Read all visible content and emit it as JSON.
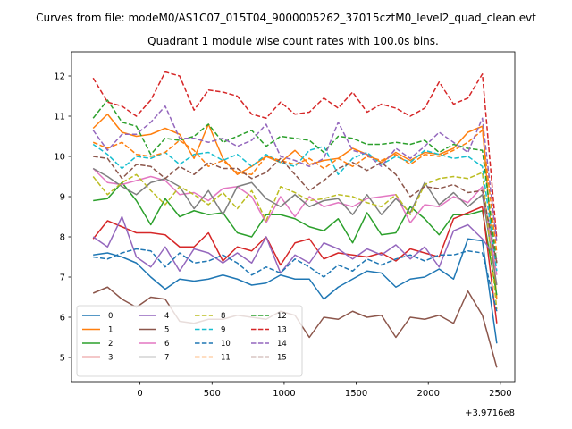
{
  "suptitle": "Curves from file: modeM0/AS1C07_015T04_9000005262_37015cztM0_level2_quad_clean.evt",
  "chart_data": {
    "type": "line",
    "title": "Quadrant 1 module wise count rates with 100.0s bins.",
    "xlabel": "",
    "ylabel": "",
    "x_offset_label": "+3.9716e8",
    "xlim": [
      -475,
      2600
    ],
    "ylim": [
      4.4,
      12.6
    ],
    "xticks": [
      0,
      500,
      1000,
      1500,
      2000,
      2500
    ],
    "yticks": [
      5,
      6,
      7,
      8,
      9,
      10,
      11,
      12
    ],
    "grid": false,
    "legend_position": "lower-left",
    "x": [
      -325,
      -225,
      -125,
      -25,
      75,
      175,
      275,
      375,
      475,
      575,
      675,
      775,
      875,
      975,
      1075,
      1175,
      1275,
      1375,
      1475,
      1575,
      1675,
      1775,
      1875,
      1975,
      2075,
      2175,
      2275,
      2375,
      2475
    ],
    "series": [
      {
        "name": "0",
        "color": "#1f77b4",
        "dash": "solid",
        "values": [
          7.55,
          7.6,
          7.5,
          7.35,
          7.0,
          6.7,
          6.95,
          6.9,
          6.95,
          7.05,
          6.95,
          6.8,
          6.85,
          7.05,
          6.95,
          6.95,
          6.45,
          6.75,
          6.95,
          7.15,
          7.1,
          6.75,
          6.95,
          7.0,
          7.2,
          6.95,
          7.95,
          7.9,
          5.35
        ]
      },
      {
        "name": "1",
        "color": "#ff7f0e",
        "dash": "solid",
        "values": [
          10.7,
          11.05,
          10.6,
          10.5,
          10.55,
          10.7,
          10.55,
          9.95,
          10.8,
          9.95,
          9.55,
          9.75,
          10.0,
          9.85,
          10.15,
          9.8,
          9.9,
          9.95,
          10.2,
          10.05,
          9.85,
          10.1,
          9.9,
          10.1,
          10.05,
          10.2,
          10.6,
          10.75,
          6.45
        ]
      },
      {
        "name": "2",
        "color": "#2ca02c",
        "dash": "solid",
        "values": [
          8.9,
          8.95,
          9.35,
          8.9,
          8.3,
          8.95,
          8.5,
          8.65,
          8.55,
          8.6,
          8.1,
          8.0,
          8.55,
          8.55,
          8.45,
          8.25,
          8.15,
          8.45,
          7.85,
          8.6,
          8.05,
          8.1,
          8.75,
          8.45,
          8.05,
          8.55,
          8.55,
          8.65,
          6.55
        ]
      },
      {
        "name": "3",
        "color": "#d62728",
        "dash": "solid",
        "values": [
          7.95,
          8.4,
          8.25,
          8.1,
          8.1,
          8.05,
          7.75,
          7.75,
          8.1,
          7.4,
          7.75,
          7.65,
          8.0,
          7.3,
          7.85,
          7.95,
          7.45,
          7.6,
          7.55,
          7.5,
          7.6,
          7.4,
          7.7,
          7.6,
          7.5,
          8.45,
          8.6,
          8.75,
          5.85
        ]
      },
      {
        "name": "4",
        "color": "#9467bd",
        "dash": "solid",
        "values": [
          8.0,
          7.75,
          8.5,
          7.5,
          7.25,
          7.75,
          7.15,
          7.7,
          7.6,
          7.35,
          7.6,
          7.35,
          8.0,
          7.1,
          7.55,
          7.35,
          7.85,
          7.7,
          7.45,
          7.7,
          7.55,
          7.8,
          7.45,
          7.75,
          7.25,
          8.15,
          8.3,
          7.95,
          7.45
        ]
      },
      {
        "name": "5",
        "color": "#8c564b",
        "dash": "solid",
        "values": [
          6.6,
          6.75,
          6.45,
          6.25,
          6.5,
          6.45,
          5.9,
          5.85,
          5.95,
          5.95,
          6.05,
          6.0,
          5.95,
          6.15,
          6.05,
          5.5,
          6.0,
          5.95,
          6.15,
          6.0,
          6.05,
          5.5,
          6.0,
          5.95,
          6.05,
          5.85,
          6.65,
          6.05,
          4.75
        ]
      },
      {
        "name": "6",
        "color": "#e377c2",
        "dash": "solid",
        "values": [
          9.7,
          9.35,
          9.3,
          9.4,
          9.5,
          9.4,
          9.05,
          9.1,
          8.9,
          9.2,
          9.25,
          9.0,
          8.35,
          9.0,
          8.5,
          9.0,
          8.75,
          8.85,
          8.75,
          8.95,
          9.0,
          9.05,
          8.35,
          8.8,
          8.75,
          9.0,
          8.85,
          9.25,
          7.05
        ]
      },
      {
        "name": "7",
        "color": "#7f7f7f",
        "dash": "solid",
        "values": [
          9.7,
          9.5,
          9.25,
          9.05,
          9.35,
          9.45,
          9.25,
          8.7,
          9.15,
          8.55,
          9.25,
          9.35,
          8.95,
          8.75,
          9.05,
          8.75,
          8.9,
          8.95,
          8.55,
          9.05,
          8.55,
          8.95,
          8.6,
          9.35,
          8.8,
          9.1,
          8.75,
          9.05,
          6.8
        ]
      },
      {
        "name": "8",
        "color": "#bcbd22",
        "dash": "dashed",
        "values": [
          9.5,
          9.05,
          9.35,
          9.55,
          9.15,
          8.8,
          9.25,
          9.05,
          8.8,
          9.1,
          8.7,
          9.15,
          8.4,
          9.25,
          9.1,
          8.9,
          8.95,
          9.05,
          9.0,
          8.85,
          8.75,
          9.05,
          8.55,
          9.3,
          9.45,
          9.5,
          9.45,
          9.6,
          6.2
        ]
      },
      {
        "name": "9",
        "color": "#17becf",
        "dash": "dashed",
        "values": [
          10.3,
          10.05,
          9.7,
          10.0,
          9.95,
          10.1,
          9.8,
          10.05,
          10.1,
          9.9,
          10.05,
          9.75,
          10.05,
          9.85,
          9.75,
          10.15,
          10.25,
          9.55,
          9.95,
          10.1,
          9.8,
          10.0,
          9.85,
          10.15,
          10.05,
          9.95,
          10.0,
          9.75,
          7.15
        ]
      },
      {
        "name": "10",
        "color": "#1f77b4",
        "dash": "dashed",
        "values": [
          7.5,
          7.45,
          7.6,
          7.7,
          7.65,
          7.25,
          7.6,
          7.35,
          7.4,
          7.55,
          7.35,
          7.05,
          7.25,
          7.1,
          7.45,
          7.25,
          7.0,
          7.3,
          7.15,
          7.45,
          7.3,
          7.45,
          7.55,
          7.4,
          7.55,
          7.55,
          7.65,
          7.6,
          6.15
        ]
      },
      {
        "name": "11",
        "color": "#ff7f0e",
        "dash": "dashed",
        "values": [
          10.35,
          10.2,
          10.35,
          10.05,
          10.0,
          10.1,
          10.4,
          10.15,
          9.75,
          9.9,
          9.6,
          9.55,
          10.0,
          9.9,
          9.8,
          9.95,
          9.7,
          9.95,
          9.75,
          10.0,
          9.9,
          10.05,
          9.8,
          10.05,
          10.0,
          10.15,
          10.35,
          10.65,
          7.6
        ]
      },
      {
        "name": "12",
        "color": "#2ca02c",
        "dash": "dashed",
        "values": [
          10.95,
          11.4,
          10.85,
          10.75,
          10.05,
          10.45,
          10.4,
          10.5,
          10.8,
          10.35,
          10.5,
          10.65,
          10.25,
          10.5,
          10.45,
          10.4,
          10.1,
          10.5,
          10.45,
          10.3,
          10.3,
          10.35,
          10.3,
          10.4,
          10.1,
          10.3,
          10.2,
          10.15,
          7.35
        ]
      },
      {
        "name": "13",
        "color": "#d62728",
        "dash": "dashed",
        "values": [
          11.95,
          11.35,
          11.25,
          11.0,
          11.4,
          12.1,
          12.0,
          11.15,
          11.65,
          11.6,
          11.5,
          11.05,
          10.95,
          11.35,
          11.05,
          11.1,
          11.45,
          11.2,
          11.6,
          11.1,
          11.3,
          11.2,
          11.0,
          11.2,
          11.85,
          11.3,
          11.45,
          12.05,
          7.95
        ]
      },
      {
        "name": "14",
        "color": "#9467bd",
        "dash": "dashed",
        "values": [
          10.65,
          10.15,
          10.55,
          10.55,
          10.85,
          11.25,
          10.45,
          10.45,
          10.35,
          10.45,
          10.25,
          10.4,
          10.8,
          10.0,
          9.9,
          9.75,
          9.95,
          10.85,
          10.15,
          10.05,
          9.75,
          10.2,
          9.95,
          10.25,
          10.6,
          10.35,
          10.1,
          10.95,
          7.85
        ]
      },
      {
        "name": "15",
        "color": "#8c564b",
        "dash": "dashed",
        "values": [
          10.0,
          9.95,
          9.45,
          9.8,
          9.75,
          9.45,
          9.75,
          9.55,
          9.85,
          9.7,
          9.7,
          9.45,
          9.6,
          9.95,
          9.55,
          9.15,
          9.4,
          9.7,
          9.85,
          9.65,
          9.85,
          9.55,
          9.0,
          9.25,
          9.2,
          9.3,
          9.1,
          9.15,
          7.35
        ]
      }
    ]
  }
}
